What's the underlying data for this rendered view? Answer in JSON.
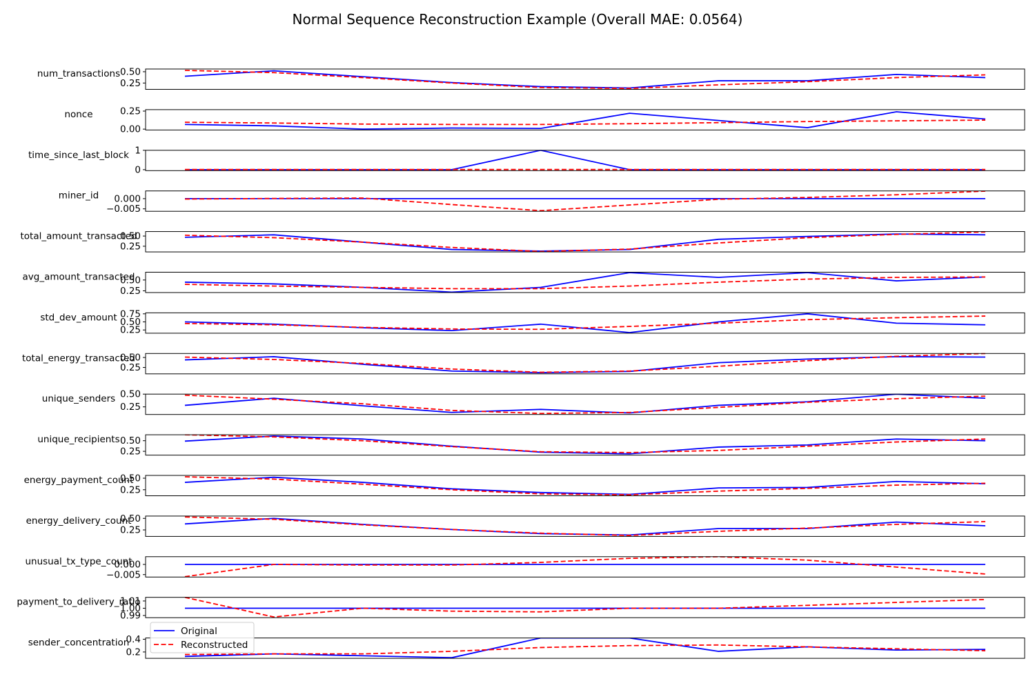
{
  "title": "Normal Sequence Reconstruction Example (Overall MAE: 0.0564)",
  "legend": {
    "placement": "lower-left of last panel",
    "entries": [
      {
        "name": "Original",
        "color": "#0000ff",
        "dash": "solid"
      },
      {
        "name": "Reconstructed",
        "color": "#ff0000",
        "dash": "dashed"
      }
    ]
  },
  "colors": {
    "original": "#0000ff",
    "reconstructed": "#ff0000"
  },
  "chart_data": {
    "type": "line",
    "x": [
      0,
      1,
      2,
      3,
      4,
      5,
      6,
      7,
      8,
      9
    ],
    "xticks_shown": false,
    "grid": false,
    "panels": [
      {
        "label": "num_transactions",
        "ylim": [
          0.11,
          0.56
        ],
        "yticks": [
          {
            "v": 0.25,
            "t": "0.25"
          },
          {
            "v": 0.5,
            "t": "0.50"
          }
        ],
        "series": [
          {
            "name": "Original",
            "values": [
              0.4,
              0.52,
              0.39,
              0.26,
              0.17,
              0.14,
              0.3,
              0.3,
              0.44,
              0.37
            ]
          },
          {
            "name": "Reconstructed",
            "values": [
              0.53,
              0.48,
              0.37,
              0.25,
              0.15,
              0.13,
              0.21,
              0.28,
              0.37,
              0.43
            ]
          }
        ]
      },
      {
        "label": "nonce",
        "ylim": [
          -0.012,
          0.27
        ],
        "yticks": [
          {
            "v": 0.0,
            "t": "0.00"
          },
          {
            "v": 0.25,
            "t": "0.25"
          }
        ],
        "series": [
          {
            "name": "Original",
            "values": [
              0.065,
              0.045,
              0.0,
              0.015,
              0.01,
              0.22,
              0.12,
              0.02,
              0.24,
              0.14
            ]
          },
          {
            "name": "Reconstructed",
            "values": [
              0.095,
              0.085,
              0.07,
              0.065,
              0.065,
              0.075,
              0.09,
              0.105,
              0.115,
              0.125
            ]
          }
        ]
      },
      {
        "label": "time_since_last_block",
        "ylim": [
          -0.05,
          1.0
        ],
        "yticks": [
          {
            "v": 0,
            "t": "0"
          },
          {
            "v": 1,
            "t": "1"
          }
        ],
        "series": [
          {
            "name": "Original",
            "values": [
              0,
              0,
              0,
              0,
              1.0,
              0,
              0,
              0,
              0,
              0
            ]
          },
          {
            "name": "Reconstructed",
            "values": [
              0.008,
              0.008,
              0.008,
              0.008,
              0.008,
              0.008,
              0.008,
              0.008,
              0.008,
              0.008
            ]
          }
        ]
      },
      {
        "label": "miner_id",
        "ylim": [
          -0.0062,
          0.0038
        ],
        "yticks": [
          {
            "v": -0.005,
            "t": "−0.005"
          },
          {
            "v": 0.0,
            "t": "0.000"
          }
        ],
        "series": [
          {
            "name": "Original",
            "values": [
              0,
              0,
              0,
              0,
              0,
              0,
              0,
              0,
              0,
              0
            ]
          },
          {
            "name": "Reconstructed",
            "values": [
              -0.0002,
              0.0001,
              0.0003,
              -0.0029,
              -0.0059,
              -0.0031,
              -0.0003,
              0.0006,
              0.0019,
              0.0037
            ]
          }
        ]
      },
      {
        "label": "total_amount_transacted",
        "ylim": [
          0.11,
          0.61
        ],
        "yticks": [
          {
            "v": 0.25,
            "t": "0.25"
          },
          {
            "v": 0.5,
            "t": "0.50"
          }
        ],
        "series": [
          {
            "name": "Original",
            "values": [
              0.47,
              0.53,
              0.35,
              0.17,
              0.13,
              0.17,
              0.42,
              0.49,
              0.55,
              0.53
            ]
          },
          {
            "name": "Reconstructed",
            "values": [
              0.52,
              0.46,
              0.35,
              0.22,
              0.12,
              0.18,
              0.33,
              0.46,
              0.54,
              0.6
            ]
          }
        ]
      },
      {
        "label": "avg_amount_transacted",
        "ylim": [
          0.21,
          0.68
        ],
        "yticks": [
          {
            "v": 0.25,
            "t": "0.25"
          },
          {
            "v": 0.5,
            "t": "0.50"
          }
        ],
        "series": [
          {
            "name": "Original",
            "values": [
              0.45,
              0.41,
              0.33,
              0.22,
              0.33,
              0.67,
              0.56,
              0.67,
              0.48,
              0.57
            ]
          },
          {
            "name": "Reconstructed",
            "values": [
              0.4,
              0.36,
              0.33,
              0.3,
              0.3,
              0.36,
              0.45,
              0.52,
              0.56,
              0.57
            ]
          }
        ]
      },
      {
        "label": "std_dev_amount",
        "ylim": [
          0.15,
          0.78
        ],
        "yticks": [
          {
            "v": 0.25,
            "t": "0.25"
          },
          {
            "v": 0.5,
            "t": "0.50"
          },
          {
            "v": 0.75,
            "t": "0.75"
          }
        ],
        "series": [
          {
            "name": "Original",
            "values": [
              0.5,
              0.43,
              0.32,
              0.23,
              0.43,
              0.17,
              0.5,
              0.75,
              0.46,
              0.41
            ]
          },
          {
            "name": "Reconstructed",
            "values": [
              0.45,
              0.41,
              0.33,
              0.28,
              0.27,
              0.36,
              0.46,
              0.57,
              0.63,
              0.68
            ]
          }
        ]
      },
      {
        "label": "total_energy_transacted",
        "ylim": [
          0.09,
          0.6
        ],
        "yticks": [
          {
            "v": 0.25,
            "t": "0.25"
          },
          {
            "v": 0.5,
            "t": "0.50"
          }
        ],
        "series": [
          {
            "name": "Original",
            "values": [
              0.44,
              0.52,
              0.33,
              0.16,
              0.12,
              0.15,
              0.37,
              0.46,
              0.52,
              0.51
            ]
          },
          {
            "name": "Reconstructed",
            "values": [
              0.51,
              0.45,
              0.35,
              0.21,
              0.13,
              0.16,
              0.28,
              0.42,
              0.53,
              0.6
            ]
          }
        ]
      },
      {
        "label": "unique_senders",
        "ylim": [
          0.1,
          0.5
        ],
        "yticks": [
          {
            "v": 0.25,
            "t": "0.25"
          },
          {
            "v": 0.5,
            "t": "0.50"
          }
        ],
        "series": [
          {
            "name": "Original",
            "values": [
              0.28,
              0.42,
              0.27,
              0.14,
              0.2,
              0.13,
              0.28,
              0.35,
              0.5,
              0.42
            ]
          },
          {
            "name": "Reconstructed",
            "values": [
              0.48,
              0.4,
              0.31,
              0.18,
              0.12,
              0.14,
              0.24,
              0.34,
              0.41,
              0.46
            ]
          }
        ]
      },
      {
        "label": "unique_recipients",
        "ylim": [
          0.16,
          0.64
        ],
        "yticks": [
          {
            "v": 0.25,
            "t": "0.25"
          },
          {
            "v": 0.5,
            "t": "0.50"
          }
        ],
        "series": [
          {
            "name": "Original",
            "values": [
              0.49,
              0.61,
              0.54,
              0.37,
              0.23,
              0.19,
              0.35,
              0.4,
              0.54,
              0.5
            ]
          },
          {
            "name": "Reconstructed",
            "values": [
              0.64,
              0.59,
              0.5,
              0.36,
              0.24,
              0.22,
              0.27,
              0.37,
              0.47,
              0.54
            ]
          }
        ]
      },
      {
        "label": "energy_payment_count",
        "ylim": [
          0.12,
          0.56
        ],
        "yticks": [
          {
            "v": 0.25,
            "t": "0.25"
          },
          {
            "v": 0.5,
            "t": "0.50"
          }
        ],
        "series": [
          {
            "name": "Original",
            "values": [
              0.41,
              0.52,
              0.41,
              0.27,
              0.19,
              0.15,
              0.29,
              0.3,
              0.43,
              0.38
            ]
          },
          {
            "name": "Reconstructed",
            "values": [
              0.53,
              0.48,
              0.37,
              0.25,
              0.16,
              0.14,
              0.22,
              0.28,
              0.35,
              0.39
            ]
          }
        ]
      },
      {
        "label": "energy_delivery_count",
        "ylim": [
          0.11,
          0.55
        ],
        "yticks": [
          {
            "v": 0.25,
            "t": "0.25"
          },
          {
            "v": 0.5,
            "t": "0.50"
          }
        ],
        "series": [
          {
            "name": "Original",
            "values": [
              0.38,
              0.5,
              0.37,
              0.26,
              0.17,
              0.14,
              0.28,
              0.28,
              0.42,
              0.34
            ]
          },
          {
            "name": "Reconstructed",
            "values": [
              0.53,
              0.48,
              0.36,
              0.26,
              0.18,
              0.13,
              0.22,
              0.29,
              0.37,
              0.43
            ]
          }
        ]
      },
      {
        "label": "unusual_tx_type_count",
        "ylim": [
          -0.0062,
          0.0038
        ],
        "yticks": [
          {
            "v": -0.005,
            "t": "−0.005"
          },
          {
            "v": 0.0,
            "t": "0.000"
          }
        ],
        "series": [
          {
            "name": "Original",
            "values": [
              0,
              0,
              0,
              0,
              0,
              0,
              0,
              0,
              0,
              0
            ]
          },
          {
            "name": "Reconstructed",
            "values": [
              -0.006,
              0.0,
              -0.0003,
              -0.0003,
              0.001,
              0.003,
              0.0038,
              0.0021,
              -0.0013,
              -0.0047
            ]
          }
        ]
      },
      {
        "label": "payment_to_delivery_ratio",
        "ylim": [
          0.987,
          1.015
        ],
        "yticks": [
          {
            "v": 0.99,
            "t": "0.99"
          },
          {
            "v": 1.0,
            "t": "1.00"
          },
          {
            "v": 1.01,
            "t": "1.01"
          }
        ],
        "series": [
          {
            "name": "Original",
            "values": [
              1.0,
              1.0,
              1.0,
              1.0,
              1.0,
              1.0,
              1.0,
              1.0,
              1.0,
              1.0
            ]
          },
          {
            "name": "Reconstructed",
            "values": [
              1.015,
              0.988,
              1.0,
              0.996,
              0.995,
              1.0,
              1.0,
              1.004,
              1.008,
              1.012
            ]
          }
        ]
      },
      {
        "label": "sender_concentration",
        "ylim": [
          0.1,
          0.42
        ],
        "yticks": [
          {
            "v": 0.2,
            "t": "0.2"
          },
          {
            "v": 0.4,
            "t": "0.4"
          }
        ],
        "series": [
          {
            "name": "Original",
            "values": [
              0.13,
              0.17,
              0.14,
              0.11,
              0.42,
              0.42,
              0.21,
              0.28,
              0.23,
              0.24
            ]
          },
          {
            "name": "Reconstructed",
            "values": [
              0.16,
              0.17,
              0.17,
              0.21,
              0.27,
              0.3,
              0.31,
              0.28,
              0.25,
              0.22
            ]
          }
        ]
      }
    ]
  }
}
